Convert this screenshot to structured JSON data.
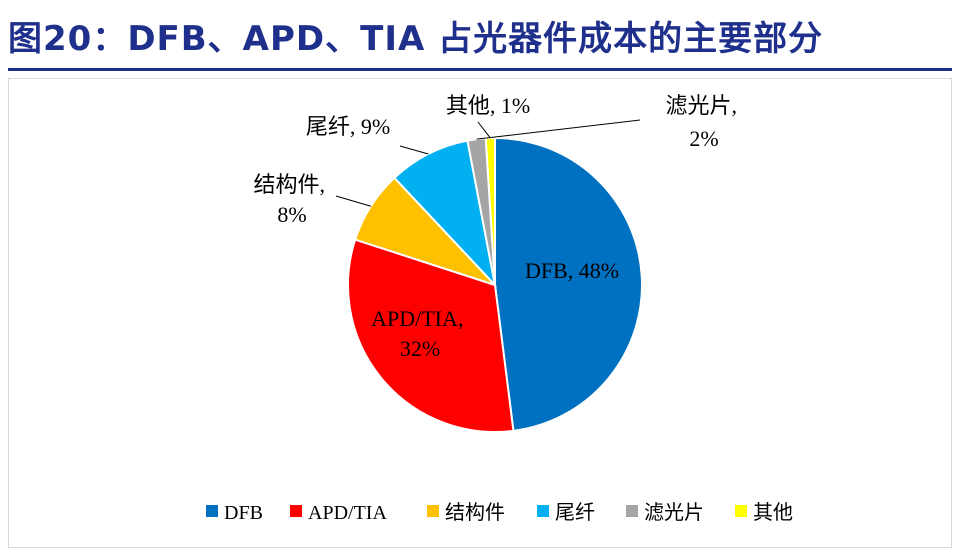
{
  "figure": {
    "title": "图20：DFB、APD、TIA 占光器件成本的主要部分"
  },
  "chart_data": {
    "type": "pie",
    "title": "",
    "slices": [
      {
        "name": "DFB",
        "value": 48,
        "color": "#0070C0",
        "label": "DFB, 48%"
      },
      {
        "name": "APD/TIA",
        "value": 32,
        "color": "#FF0000",
        "label": "APD/TIA, 32%"
      },
      {
        "name": "结构件",
        "value": 8,
        "color": "#FFC000",
        "label": "结构件, 8%"
      },
      {
        "name": "尾纤",
        "value": 9,
        "color": "#00B0F0",
        "label": "尾纤, 9%"
      },
      {
        "name": "滤光片",
        "value": 2,
        "color": "#A5A5A5",
        "label": "滤光片, 2%"
      },
      {
        "name": "其他",
        "value": 1,
        "color": "#FFFF00",
        "label": "其他, 1%"
      }
    ],
    "legend": {
      "position": "bottom",
      "items": [
        "DFB",
        "APD/TIA",
        "结构件",
        "尾纤",
        "滤光片",
        "其他"
      ]
    }
  }
}
